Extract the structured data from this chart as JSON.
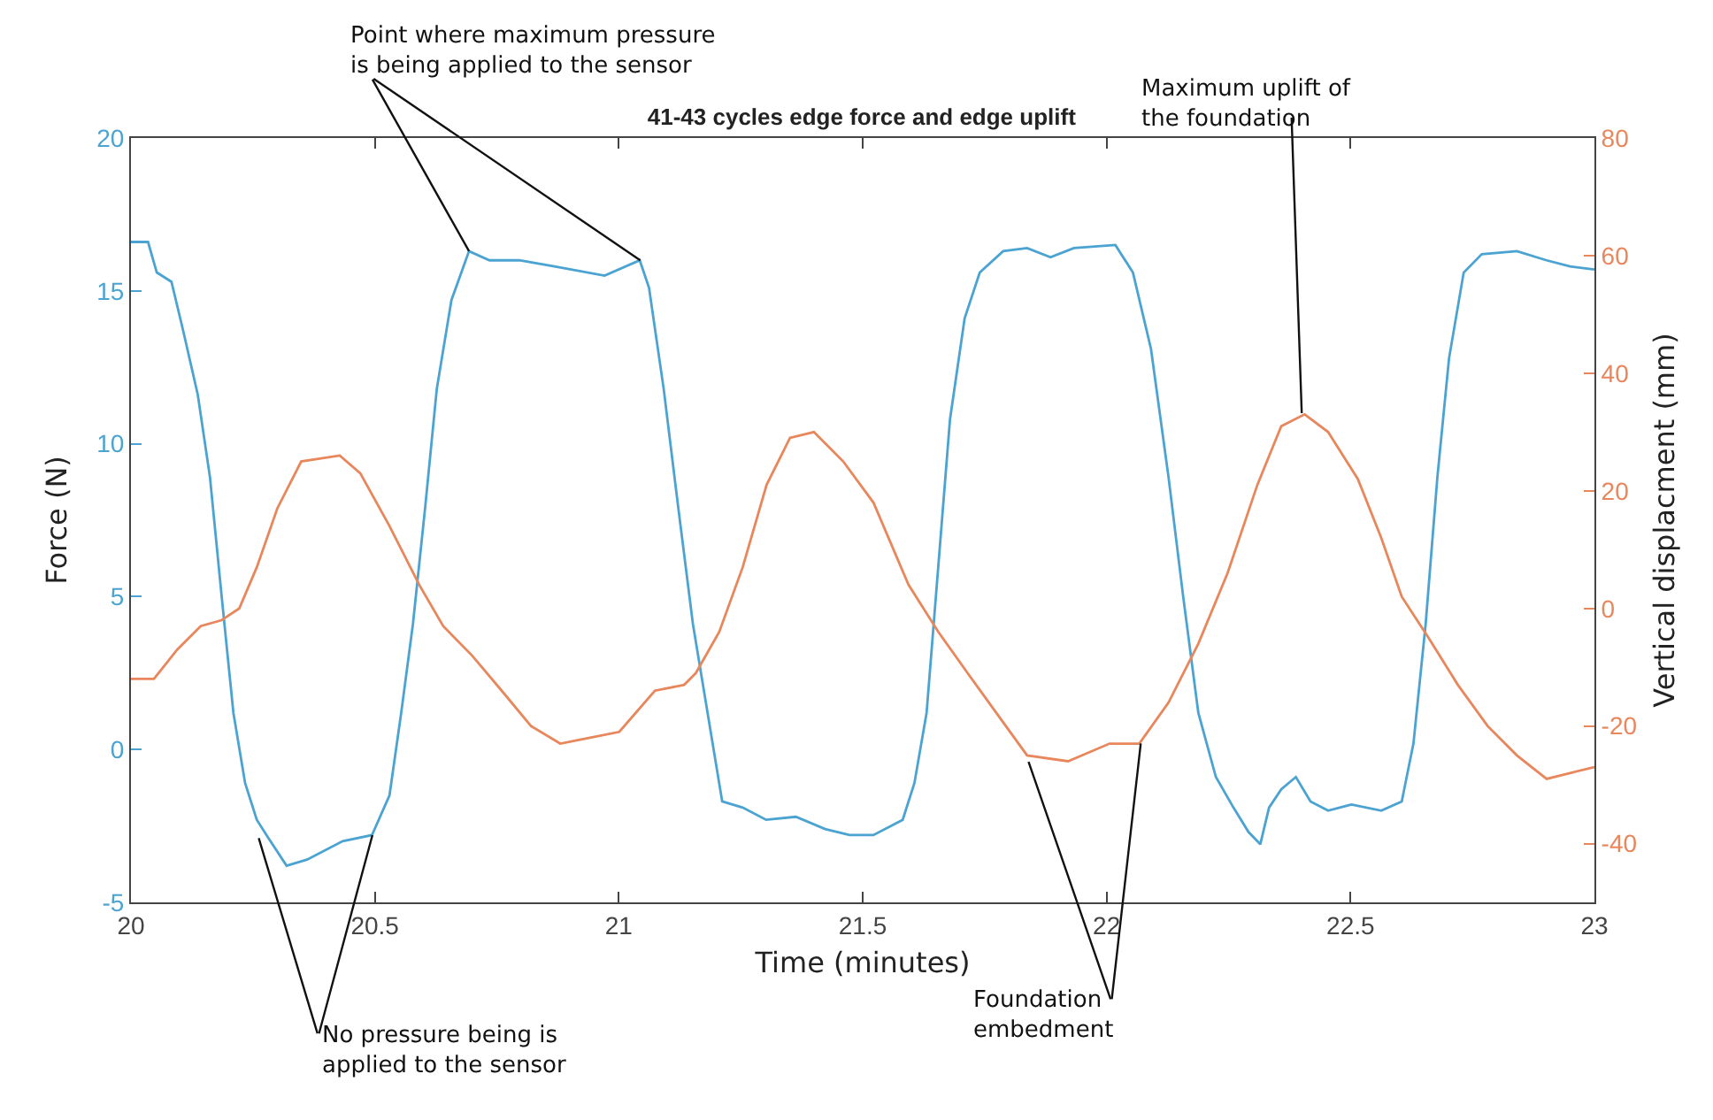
{
  "chart_data": {
    "type": "line",
    "title": "41-43 cycles edge force and edge uplift",
    "xlabel": "Time (minutes)",
    "ylabel": "Force (N)",
    "y2label": "Vertical displacment (mm)",
    "xlim": [
      20,
      23
    ],
    "xticks": [
      20,
      20.5,
      21,
      21.5,
      22,
      22.5,
      23
    ],
    "ylim": [
      -5,
      20
    ],
    "yticks": [
      -5,
      0,
      5,
      10,
      15,
      20
    ],
    "y2lim": [
      -50,
      80
    ],
    "y2ticks": [
      -40,
      -20,
      0,
      20,
      40,
      60,
      80
    ],
    "grid": false,
    "marker": "none",
    "line_style": "solid",
    "series": [
      {
        "color": "#4ba3d1",
        "x": [
          20,
          20.035,
          20.053,
          20.083,
          20.107,
          20.137,
          20.162,
          20.186,
          20.21,
          20.234,
          20.258,
          20.282,
          20.319,
          20.361,
          20.434,
          20.494,
          20.53,
          20.554,
          20.578,
          20.603,
          20.627,
          20.657,
          20.693,
          20.735,
          20.796,
          20.868,
          20.971,
          21.043,
          21.062,
          21.092,
          21.122,
          21.152,
          21.182,
          21.212,
          21.254,
          21.302,
          21.363,
          21.423,
          21.473,
          21.522,
          21.582,
          21.606,
          21.631,
          21.655,
          21.679,
          21.709,
          21.74,
          21.788,
          21.837,
          21.885,
          21.933,
          22.018,
          22.054,
          22.091,
          22.127,
          22.157,
          22.188,
          22.224,
          22.26,
          22.291,
          22.315,
          22.333,
          22.358,
          22.388,
          22.418,
          22.454,
          22.502,
          22.563,
          22.605,
          22.629,
          22.654,
          22.678,
          22.702,
          22.732,
          22.769,
          22.841,
          22.902,
          22.95,
          23
        ],
        "values": [
          16.6,
          16.6,
          15.6,
          15.3,
          13.7,
          11.6,
          8.9,
          5.0,
          1.2,
          -1.1,
          -2.3,
          -2.9,
          -3.8,
          -3.6,
          -3.0,
          -2.8,
          -1.5,
          1.2,
          4.1,
          7.9,
          11.8,
          14.7,
          16.3,
          16.0,
          16.0,
          15.8,
          15.5,
          16.0,
          15.1,
          11.8,
          7.9,
          4.1,
          1.2,
          -1.7,
          -1.9,
          -2.3,
          -2.2,
          -2.6,
          -2.8,
          -2.8,
          -2.3,
          -1.1,
          1.2,
          6.0,
          10.8,
          14.1,
          15.6,
          16.3,
          16.4,
          16.1,
          16.4,
          16.5,
          15.6,
          13.1,
          8.9,
          5.0,
          1.2,
          -0.9,
          -1.9,
          -2.7,
          -3.1,
          -1.9,
          -1.3,
          -0.9,
          -1.7,
          -2.0,
          -1.8,
          -2.0,
          -1.7,
          0.2,
          4.1,
          8.9,
          12.8,
          15.6,
          16.2,
          16.3,
          16.0,
          15.8,
          15.7
        ]
      },
      {
        "color": "#e8865c",
        "axis": "y2",
        "x": [
          20,
          20.047,
          20.095,
          20.143,
          20.186,
          20.222,
          20.258,
          20.3,
          20.349,
          20.428,
          20.47,
          20.53,
          20.591,
          20.64,
          20.699,
          20.76,
          20.82,
          20.88,
          20.941,
          21.001,
          21.074,
          21.134,
          21.158,
          21.206,
          21.254,
          21.303,
          21.351,
          21.4,
          21.46,
          21.522,
          21.594,
          21.655,
          21.715,
          21.776,
          21.837,
          21.921,
          22.006,
          22.067,
          22.127,
          22.188,
          22.248,
          22.309,
          22.358,
          22.406,
          22.454,
          22.515,
          22.563,
          22.605,
          22.66,
          22.72,
          22.781,
          22.841,
          22.902,
          22.95,
          23
        ],
        "values": [
          -12,
          -12,
          -7,
          -3,
          -2,
          0,
          7,
          17,
          25,
          26,
          23,
          14,
          4,
          -3,
          -8,
          -14,
          -20,
          -23,
          -22,
          -21,
          -14,
          -13,
          -11,
          -4,
          7,
          21,
          29,
          30,
          25,
          18,
          4,
          -4,
          -11,
          -18,
          -25,
          -26,
          -23,
          -23,
          -16,
          -6,
          6,
          21,
          31,
          33,
          30,
          22,
          12,
          2,
          -5,
          -13,
          -20,
          -25,
          -29,
          -28,
          -27
        ]
      }
    ],
    "annotations": [
      {
        "text": "Point where maximum pressure\nis being applied to the sensor",
        "x": 20.693,
        "y": 16.3
      },
      {
        "text": "No pressure being is\napplied to the sensor",
        "x": 20.262,
        "y": -2.9
      },
      {
        "text": "Maximum uplift of\nthe foundation",
        "x": 22.4,
        "y": 11
      },
      {
        "text": "Foundation\nembedment",
        "x": 21.84,
        "y": -0.4
      }
    ]
  }
}
